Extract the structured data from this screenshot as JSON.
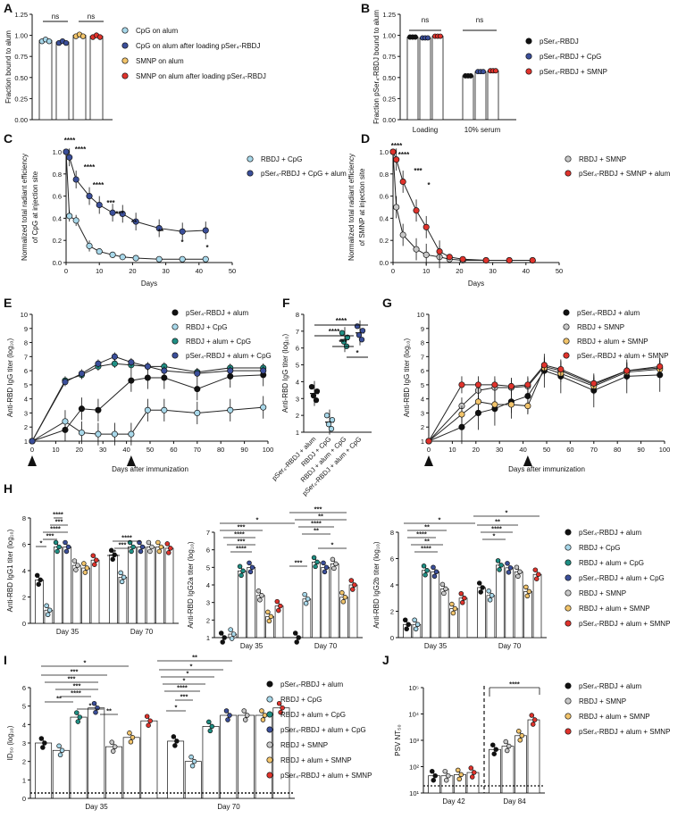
{
  "colors": {
    "black": "#111111",
    "light_blue": "#a8d8ea",
    "teal": "#1f8f84",
    "navy": "#3b4f9a",
    "grey": "#c8c8c8",
    "yellow": "#f2c46b",
    "red": "#e0332c",
    "pale_blue": "#6aa7d8",
    "green_fill": "#cfe8d8"
  },
  "chart_data": [
    {
      "panel": "A",
      "type": "bar",
      "ylabel": "Fraction bound to alum",
      "ylim": [
        0,
        1.25
      ],
      "yticks": [
        "0.00",
        "0.25",
        "0.50",
        "0.75",
        "1.00",
        "1.25"
      ],
      "categories": [
        "CpG on alum",
        "CpG on alum after loading pSer4-RBDJ",
        "SMNP on alum",
        "SMNP on alum after loading pSer4-RBDJ"
      ],
      "legend": [
        "CpG on alum",
        "CpG on alum after loading pSer₄-RBDJ",
        "SMNP on alum",
        "SMNP on alum after loading pSer₄-RBDJ"
      ],
      "values": [
        0.94,
        0.92,
        1.0,
        0.99
      ],
      "annotations": [
        "ns",
        "ns"
      ]
    },
    {
      "panel": "B",
      "type": "bar",
      "ylabel": "Fraction pSer₄-RBDJ bound to alum",
      "ylim": [
        0,
        1.25
      ],
      "yticks": [
        "0.00",
        "0.25",
        "0.50",
        "0.75",
        "1.00",
        "1.25"
      ],
      "categories": [
        "Loading",
        "10% serum"
      ],
      "legend": [
        "pSer₄-RBDJ",
        "pSer₄-RBDJ + CpG",
        "pSer₄-RBDJ + SMNP"
      ],
      "series": [
        {
          "name": "pSer4-RBDJ",
          "values": [
            0.98,
            0.52
          ]
        },
        {
          "name": "pSer4-RBDJ + CpG",
          "values": [
            0.97,
            0.57
          ]
        },
        {
          "name": "pSer4-RBDJ + SMNP",
          "values": [
            0.99,
            0.58
          ]
        }
      ],
      "annotations": [
        "ns",
        "ns"
      ]
    },
    {
      "panel": "C",
      "type": "line",
      "ylabel": "Normalized total radiant efficiency of CpG at injection site",
      "xlabel": "Days",
      "xlim": [
        0,
        50
      ],
      "ylim": [
        0,
        1.0
      ],
      "xticks": [
        "0",
        "10",
        "20",
        "30",
        "40",
        "50"
      ],
      "yticks": [
        "0.0",
        "0.2",
        "0.4",
        "0.6",
        "0.8",
        "1.0"
      ],
      "series": [
        {
          "name": "RBDJ + CpG",
          "x": [
            0,
            1,
            3,
            7,
            10,
            14,
            17,
            21,
            28,
            35,
            42
          ],
          "y": [
            1.0,
            0.42,
            0.38,
            0.15,
            0.1,
            0.07,
            0.05,
            0.04,
            0.03,
            0.03,
            0.03
          ]
        },
        {
          "name": "pSer₄-RBDJ + CpG + alum",
          "x": [
            0,
            1,
            3,
            7,
            10,
            14,
            17,
            21,
            28,
            35,
            42
          ],
          "y": [
            1.0,
            0.95,
            0.75,
            0.6,
            0.52,
            0.45,
            0.44,
            0.37,
            0.31,
            0.28,
            0.29
          ]
        }
      ],
      "annotations": [
        "****",
        "****",
        "****",
        "****",
        "***",
        "***",
        "**",
        "**",
        "*",
        "*"
      ]
    },
    {
      "panel": "D",
      "type": "line",
      "ylabel": "Normalized total radiant efficiency of SMNP at injection site",
      "xlabel": "Days",
      "xlim": [
        0,
        50
      ],
      "ylim": [
        0,
        1.0
      ],
      "xticks": [
        "0",
        "10",
        "20",
        "30",
        "40",
        "50"
      ],
      "yticks": [
        "0.0",
        "0.2",
        "0.4",
        "0.6",
        "0.8",
        "1.0"
      ],
      "series": [
        {
          "name": "RBDJ + SMNP",
          "x": [
            0,
            1,
            3,
            7,
            10,
            14,
            17,
            21,
            28,
            35,
            42
          ],
          "y": [
            1.0,
            0.5,
            0.25,
            0.12,
            0.07,
            0.05,
            0.03,
            0.02,
            0.02,
            0.02,
            0.02
          ]
        },
        {
          "name": "pSer₄-RBDJ + SMNP + alum",
          "x": [
            0,
            1,
            3,
            7,
            10,
            14,
            17,
            21,
            28,
            35,
            42
          ],
          "y": [
            1.0,
            0.93,
            0.73,
            0.47,
            0.32,
            0.1,
            0.05,
            0.03,
            0.02,
            0.02,
            0.02
          ]
        }
      ],
      "annotations": [
        "****",
        "****",
        "***",
        "*"
      ]
    },
    {
      "panel": "E",
      "type": "line",
      "ylabel": "Anti-RBD IgG titer (log₁₀)",
      "xlabel": "Days after immunization",
      "xlim": [
        0,
        100
      ],
      "ylim": [
        1,
        10
      ],
      "xticks": [
        "0",
        "10",
        "20",
        "30",
        "40",
        "50",
        "60",
        "70",
        "80",
        "90",
        "100"
      ],
      "yticks": [
        "1",
        "2",
        "3",
        "4",
        "5",
        "6",
        "7",
        "8",
        "9",
        "10"
      ],
      "arrows_at_days": [
        0,
        42
      ],
      "series": [
        {
          "name": "pSer₄-RBDJ + alum",
          "x": [
            0,
            14,
            21,
            28,
            42,
            49,
            56,
            70,
            84,
            98
          ],
          "y": [
            1,
            1.8,
            3.3,
            3.2,
            5.3,
            5.5,
            5.5,
            4.7,
            5.6,
            5.7
          ]
        },
        {
          "name": "RBDJ + CpG",
          "x": [
            0,
            14,
            21,
            28,
            35,
            42,
            49,
            56,
            70,
            84,
            98
          ],
          "y": [
            1,
            2.4,
            1.6,
            1.5,
            1.5,
            1.5,
            3.2,
            3.2,
            3.0,
            3.2,
            3.4
          ]
        },
        {
          "name": "RBDJ + alum + CpG",
          "x": [
            0,
            14,
            21,
            28,
            35,
            42,
            49,
            56,
            70,
            84,
            98
          ],
          "y": [
            1,
            5.3,
            5.7,
            6.3,
            6.5,
            6.4,
            6.3,
            6.3,
            5.9,
            6.2,
            6.2
          ]
        },
        {
          "name": "pSer₄-RBDJ + alum + CpG",
          "x": [
            0,
            14,
            21,
            28,
            35,
            42,
            49,
            56,
            70,
            84,
            98
          ],
          "y": [
            1,
            5.2,
            5.8,
            6.5,
            7.0,
            6.6,
            6.3,
            6.0,
            5.8,
            6.0,
            6.0
          ]
        }
      ]
    },
    {
      "panel": "F",
      "type": "scatter",
      "ylabel": "Anti-RBD IgG titer (log₁₀)",
      "ylim": [
        1,
        8
      ],
      "yticks": [
        "1",
        "2",
        "3",
        "4",
        "5",
        "6",
        "7",
        "8"
      ],
      "categories": [
        "pSer₄-RBDJ + alum",
        "RBDJ + CpG",
        "RBDJ + alum + CpG",
        "pSer₄-RBDJ + alum + CpG"
      ],
      "values": [
        3.3,
        1.6,
        6.5,
        6.9
      ],
      "annotations": [
        "****",
        "****",
        "***",
        "*"
      ]
    },
    {
      "panel": "G",
      "type": "line",
      "ylabel": "Anti-RBD IgG titer (log₁₀)",
      "xlabel": "Days after immunization",
      "xlim": [
        0,
        100
      ],
      "ylim": [
        1,
        10
      ],
      "xticks": [
        "0",
        "10",
        "20",
        "30",
        "40",
        "50",
        "60",
        "70",
        "80",
        "90",
        "100"
      ],
      "yticks": [
        "1",
        "2",
        "3",
        "4",
        "5",
        "6",
        "7",
        "8",
        "9",
        "10"
      ],
      "arrows_at_days": [
        0,
        42
      ],
      "series": [
        {
          "name": "pSer₄-RBDJ + alum",
          "x": [
            0,
            14,
            21,
            28,
            35,
            42,
            49,
            56,
            70,
            84,
            98
          ],
          "y": [
            1,
            2.0,
            3.0,
            3.3,
            3.8,
            4.2,
            6.0,
            5.6,
            4.6,
            5.6,
            5.7
          ]
        },
        {
          "name": "RBDJ + SMNP",
          "x": [
            0,
            14,
            21,
            28,
            35,
            42,
            49,
            56,
            70,
            84,
            98
          ],
          "y": [
            1,
            3.5,
            4.6,
            4.8,
            4.8,
            4.9,
            6.3,
            6.0,
            5.0,
            6.0,
            6.2
          ]
        },
        {
          "name": "RBDJ + alum + SMNP",
          "x": [
            0,
            14,
            21,
            28,
            35,
            42,
            49,
            56,
            70,
            84,
            98
          ],
          "y": [
            1,
            2.9,
            3.8,
            3.6,
            3.6,
            3.5,
            6.2,
            5.8,
            4.9,
            5.9,
            6.1
          ]
        },
        {
          "name": "pSer₄-RBDJ + alum + SMNP",
          "x": [
            0,
            14,
            21,
            28,
            35,
            42,
            49,
            56,
            70,
            84,
            98
          ],
          "y": [
            1,
            5.0,
            5.0,
            5.0,
            4.9,
            5.0,
            6.4,
            6.1,
            5.1,
            6.0,
            6.3
          ]
        }
      ]
    },
    {
      "panel": "H1",
      "type": "bar",
      "ylabel": "Anti-RBD IgG1 titer (log₁₀)",
      "ylim": [
        0,
        8
      ],
      "yticks": [
        "0",
        "2",
        "4",
        "6",
        "8"
      ],
      "categories": [
        "Day 35",
        "Day 70"
      ],
      "series_names": [
        "pSer₄-RBDJ + alum",
        "RBDJ + CpG",
        "RBDJ + alum + CpG",
        "pSer₄-RBDJ + alum + CpG",
        "RBDJ + SMNP",
        "RBDJ + alum + SMNP",
        "pSer₄-RBDJ + alum + SMNP"
      ],
      "series_values": [
        [
          3.3,
          1.0,
          5.8,
          5.8,
          4.4,
          4.2,
          4.8
        ],
        [
          5.2,
          3.5,
          5.8,
          5.8,
          5.8,
          5.8,
          5.7
        ]
      ],
      "annotations": [
        "*",
        "***",
        "****",
        "***",
        "****",
        "**",
        "***",
        "****"
      ]
    },
    {
      "panel": "H2",
      "type": "bar",
      "ylabel": "Anti-RBD IgG2a titer (log₁₀)",
      "ylim": [
        1,
        7
      ],
      "yticks": [
        "1",
        "2",
        "3",
        "4",
        "5",
        "6",
        "7"
      ],
      "categories": [
        "Day 35",
        "Day 70"
      ],
      "series_names": [
        "pSer₄-RBDJ + alum",
        "RBDJ + CpG",
        "RBDJ + alum + CpG",
        "pSer₄-RBDJ + alum + CpG",
        "RBDJ + SMNP",
        "RBDJ + alum + SMNP",
        "pSer₄-RBDJ + alum + SMNP"
      ],
      "series_values": [
        [
          1.0,
          1.2,
          4.8,
          5.0,
          3.4,
          2.2,
          2.8
        ],
        [
          1.0,
          3.2,
          5.3,
          5.0,
          5.2,
          3.3,
          4.0
        ]
      ],
      "annotations": [
        "*",
        "***",
        "****",
        "***",
        "****",
        "***",
        "***",
        "**",
        "****",
        "**",
        "*"
      ]
    },
    {
      "panel": "H3",
      "type": "bar",
      "ylabel": "Anti-RBD IgG2b titer (log₁₀)",
      "ylim": [
        0,
        8
      ],
      "yticks": [
        "0",
        "2",
        "4",
        "6",
        "8"
      ],
      "categories": [
        "Day 35",
        "Day 70"
      ],
      "series_names": [
        "pSer₄-RBDJ + alum",
        "RBDJ + CpG",
        "RBDJ + alum + CpG",
        "pSer₄-RBDJ + alum + CpG",
        "RBDJ + SMNP",
        "RBDJ + alum + SMNP",
        "pSer₄-RBDJ + alum + SMNP"
      ],
      "series_values": [
        [
          1.0,
          1.0,
          5.1,
          5.0,
          3.7,
          2.2,
          3.0
        ],
        [
          3.8,
          3.2,
          5.5,
          5.3,
          5.0,
          3.5,
          4.8
        ]
      ],
      "annotations": [
        "*",
        "**",
        "****",
        "**",
        "****",
        "*",
        "**",
        "****",
        "*"
      ]
    },
    {
      "panel": "I",
      "type": "bar",
      "ylabel": "ID₅₀ (log₁₀)",
      "ylim": [
        0,
        6
      ],
      "yticks": [
        "0",
        "1",
        "2",
        "3",
        "4",
        "5",
        "6"
      ],
      "categories": [
        "Day 35",
        "Day 70"
      ],
      "series_names": [
        "pSer₄-RBDJ + alum",
        "RBDJ + CpG",
        "RBDJ + alum + CpG",
        "pSer₄-RBDJ + alum + CpG",
        "RBDJ + SMNP",
        "RBDJ + alum + SMNP",
        "pSer₄-RBDJ + alum + SMNP"
      ],
      "series_values": [
        [
          3.0,
          2.6,
          4.4,
          4.9,
          2.8,
          3.3,
          4.2
        ],
        [
          3.1,
          2.0,
          3.9,
          4.5,
          4.5,
          4.5,
          4.9
        ]
      ],
      "annotations": [
        "*",
        "***",
        "***",
        "***",
        "****",
        "**",
        "*",
        "**",
        "**",
        "*",
        "*",
        "*",
        "****",
        "***",
        "*"
      ]
    },
    {
      "panel": "J",
      "type": "bar",
      "ylabel": "PSV NT₅₀",
      "yscale": "log",
      "ylim": [
        10,
        100000
      ],
      "yticks": [
        "10¹",
        "10²",
        "10³",
        "10⁴",
        "10⁵"
      ],
      "categories": [
        "Day 42",
        "Day 84"
      ],
      "series_names": [
        "pSer₄-RBDJ + alum",
        "RBDJ + SMNP",
        "RBDJ + alum + SMNP",
        "pSer₄-RBDJ + alum + SMNP"
      ],
      "series_values": [
        [
          45,
          45,
          50,
          60
        ],
        [
          450,
          600,
          1500,
          6000
        ]
      ],
      "annotations": [
        "****"
      ]
    }
  ],
  "labels": {
    "ns": "ns",
    "days": "Days",
    "days_after": "Days after immunization",
    "loading": "Loading",
    "serum": "10% serum",
    "day35": "Day 35",
    "day70": "Day 70",
    "day42": "Day 42",
    "day84": "Day 84"
  },
  "panel_letters": [
    "A",
    "B",
    "C",
    "D",
    "E",
    "F",
    "G",
    "H",
    "I",
    "J"
  ]
}
